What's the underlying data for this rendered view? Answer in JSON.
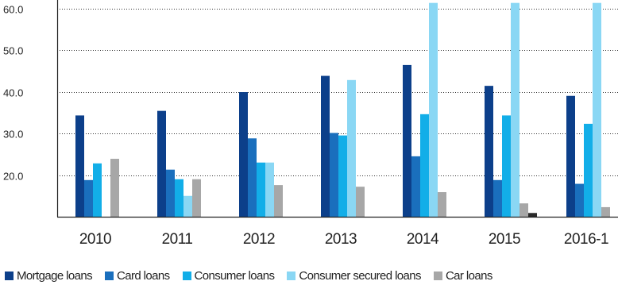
{
  "chart_data": {
    "type": "bar",
    "categories": [
      "2010",
      "2011",
      "2012",
      "2013",
      "2014",
      "2015",
      "2016-1"
    ],
    "series": [
      {
        "name": "Mortgage loans",
        "color": "#0c3f8a",
        "values": [
          34.3,
          35.4,
          39.9,
          43.8,
          46.4,
          41.4,
          39.0
        ]
      },
      {
        "name": "Card loans",
        "color": "#1a6fbd",
        "values": [
          18.8,
          21.3,
          28.8,
          30.1,
          24.5,
          18.8,
          17.9
        ]
      },
      {
        "name": "Consumer loans",
        "color": "#12aee8",
        "values": [
          22.8,
          19.0,
          23.0,
          29.5,
          34.6,
          34.3,
          32.3
        ]
      },
      {
        "name": "Consumer secured loans",
        "color": "#8ad7f4",
        "values": [
          null,
          15.0,
          23.0,
          42.8,
          61.3,
          61.3,
          61.3
        ]
      },
      {
        "name": "Car loans",
        "color": "#a7a7a7",
        "values": [
          23.9,
          19.0,
          17.6,
          17.2,
          15.9,
          13.2,
          12.3
        ]
      }
    ],
    "extra_bar": {
      "category": "2015",
      "value": 10.9,
      "color": "#2a2a2a"
    },
    "yticks": [
      "20.0",
      "30.0",
      "40.0",
      "50.0",
      "60.0"
    ],
    "ylim": [
      10,
      62.5
    ],
    "grid": true,
    "legend_position": "bottom"
  }
}
